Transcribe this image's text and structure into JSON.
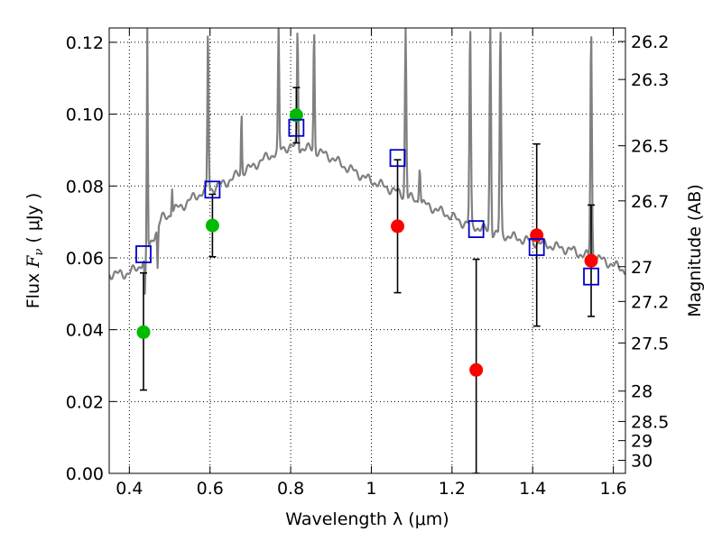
{
  "chart_data": {
    "type": "scatter",
    "xlabel": "Wavelength  λ (μm)",
    "ylabel": "Flux  F<sub>ν</sub>  ( μJy )",
    "ylabel_parts": {
      "prefix": "Flux  ",
      "symbol": "F",
      "subscript": "ν",
      "suffix": "  ( μJy )"
    },
    "y2label": "Magnitude (AB)",
    "xlim": [
      0.35,
      1.63
    ],
    "ylim": [
      0.0,
      0.124
    ],
    "grid": true,
    "x_ticks": [
      {
        "value": 0.4,
        "label": "0.4"
      },
      {
        "value": 0.6,
        "label": "0.6"
      },
      {
        "value": 0.8,
        "label": "0.8"
      },
      {
        "value": 1.0,
        "label": "1"
      },
      {
        "value": 1.2,
        "label": "1.2"
      },
      {
        "value": 1.4,
        "label": "1.4"
      },
      {
        "value": 1.6,
        "label": "1.6"
      }
    ],
    "y_ticks": [
      {
        "value": 0.0,
        "label": "0.00"
      },
      {
        "value": 0.02,
        "label": "0.02"
      },
      {
        "value": 0.04,
        "label": "0.04"
      },
      {
        "value": 0.06,
        "label": "0.06"
      },
      {
        "value": 0.08,
        "label": "0.08"
      },
      {
        "value": 0.1,
        "label": "0.10"
      },
      {
        "value": 0.12,
        "label": "0.12"
      }
    ],
    "y2_ticks": [
      {
        "mag": 26.2,
        "label": "26.2"
      },
      {
        "mag": 26.3,
        "label": "26.3"
      },
      {
        "mag": 26.5,
        "label": "26.5"
      },
      {
        "mag": 26.7,
        "label": "26.7"
      },
      {
        "mag": 27.0,
        "label": "27"
      },
      {
        "mag": 27.2,
        "label": "27.2"
      },
      {
        "mag": 27.5,
        "label": "27.5"
      },
      {
        "mag": 28.0,
        "label": "28"
      },
      {
        "mag": 28.5,
        "label": "28.5"
      },
      {
        "mag": 29.0,
        "label": "29"
      },
      {
        "mag": 30.0,
        "label": "30"
      }
    ],
    "colors": {
      "spectrum": "#808080",
      "green_points": "#00bb00",
      "red_points": "#ff0000",
      "model_squares": "#0000cc",
      "error_bars": "#000000"
    },
    "spectrum": {
      "continuum": [
        [
          0.35,
          0.0555
        ],
        [
          0.39,
          0.0555
        ],
        [
          0.42,
          0.057
        ],
        [
          0.44,
          0.06
        ],
        [
          0.46,
          0.066
        ],
        [
          0.48,
          0.071
        ],
        [
          0.5,
          0.072
        ],
        [
          0.52,
          0.074
        ],
        [
          0.54,
          0.075
        ],
        [
          0.56,
          0.077
        ],
        [
          0.58,
          0.078
        ],
        [
          0.6,
          0.079
        ],
        [
          0.62,
          0.08
        ],
        [
          0.64,
          0.081
        ],
        [
          0.66,
          0.0825
        ],
        [
          0.68,
          0.084
        ],
        [
          0.7,
          0.085
        ],
        [
          0.72,
          0.0865
        ],
        [
          0.74,
          0.088
        ],
        [
          0.76,
          0.089
        ],
        [
          0.78,
          0.0905
        ],
        [
          0.8,
          0.091
        ],
        [
          0.82,
          0.0905
        ],
        [
          0.84,
          0.0905
        ],
        [
          0.86,
          0.09
        ],
        [
          0.88,
          0.089
        ],
        [
          0.9,
          0.088
        ],
        [
          0.92,
          0.0865
        ],
        [
          0.94,
          0.085
        ],
        [
          0.96,
          0.084
        ],
        [
          0.98,
          0.0825
        ],
        [
          1.0,
          0.0815
        ],
        [
          1.02,
          0.0805
        ],
        [
          1.04,
          0.0795
        ],
        [
          1.06,
          0.0785
        ],
        [
          1.08,
          0.0775
        ],
        [
          1.1,
          0.0765
        ],
        [
          1.12,
          0.0755
        ],
        [
          1.14,
          0.0745
        ],
        [
          1.16,
          0.0735
        ],
        [
          1.18,
          0.0725
        ],
        [
          1.2,
          0.0715
        ],
        [
          1.22,
          0.07
        ],
        [
          1.24,
          0.0695
        ],
        [
          1.26,
          0.0685
        ],
        [
          1.28,
          0.068
        ],
        [
          1.3,
          0.067
        ],
        [
          1.32,
          0.0665
        ],
        [
          1.34,
          0.066
        ],
        [
          1.36,
          0.0655
        ],
        [
          1.38,
          0.065
        ],
        [
          1.4,
          0.0645
        ],
        [
          1.42,
          0.064
        ],
        [
          1.44,
          0.0635
        ],
        [
          1.46,
          0.063
        ],
        [
          1.48,
          0.0625
        ],
        [
          1.5,
          0.062
        ],
        [
          1.52,
          0.061
        ],
        [
          1.54,
          0.0605
        ],
        [
          1.56,
          0.06
        ],
        [
          1.58,
          0.059
        ],
        [
          1.6,
          0.058
        ],
        [
          1.63,
          0.0565
        ]
      ],
      "lines": [
        {
          "x": 0.4385,
          "peak": 0.049,
          "width": 0.004
        },
        {
          "x": 0.4445,
          "peak": 0.124,
          "width": 0.004
        },
        {
          "x": 0.47,
          "peak": 0.057,
          "width": 0.004
        },
        {
          "x": 0.506,
          "peak": 0.08,
          "width": 0.004
        },
        {
          "x": 0.595,
          "peak": 0.124,
          "width": 0.005
        },
        {
          "x": 0.678,
          "peak": 0.101,
          "width": 0.004
        },
        {
          "x": 0.77,
          "peak": 0.124,
          "width": 0.005
        },
        {
          "x": 0.817,
          "peak": 0.124,
          "width": 0.005
        },
        {
          "x": 0.858,
          "peak": 0.124,
          "width": 0.005
        },
        {
          "x": 1.085,
          "peak": 0.124,
          "width": 0.006
        },
        {
          "x": 1.12,
          "peak": 0.086,
          "width": 0.006
        },
        {
          "x": 1.245,
          "peak": 0.124,
          "width": 0.006
        },
        {
          "x": 1.295,
          "peak": 0.124,
          "width": 0.006
        },
        {
          "x": 1.32,
          "peak": 0.124,
          "width": 0.006
        },
        {
          "x": 1.545,
          "peak": 0.124,
          "width": 0.006
        }
      ]
    },
    "series": [
      {
        "marker": "circle",
        "color": "green_points",
        "points": [
          {
            "x": 0.435,
            "y": 0.0393,
            "yerr_low": 0.0232,
            "yerr_high": 0.0558
          },
          {
            "x": 0.606,
            "y": 0.069,
            "yerr_low": 0.0603,
            "yerr_high": 0.0777
          },
          {
            "x": 0.814,
            "y": 0.0997,
            "yerr_low": 0.092,
            "yerr_high": 0.1074
          }
        ]
      },
      {
        "marker": "circle",
        "color": "red_points",
        "points": [
          {
            "x": 1.065,
            "y": 0.0688,
            "yerr_low": 0.0503,
            "yerr_high": 0.0873
          },
          {
            "x": 1.26,
            "y": 0.0288,
            "yerr_low": 0.0,
            "yerr_high": 0.0596
          },
          {
            "x": 1.41,
            "y": 0.0663,
            "yerr_low": 0.041,
            "yerr_high": 0.0917
          },
          {
            "x": 1.545,
            "y": 0.0592,
            "yerr_low": 0.0437,
            "yerr_high": 0.0747
          }
        ]
      },
      {
        "marker": "square",
        "color": "model_squares",
        "points": [
          {
            "x": 0.435,
            "y": 0.061
          },
          {
            "x": 0.606,
            "y": 0.079
          },
          {
            "x": 0.814,
            "y": 0.0962
          },
          {
            "x": 1.065,
            "y": 0.0878
          },
          {
            "x": 1.26,
            "y": 0.068
          },
          {
            "x": 1.41,
            "y": 0.063
          },
          {
            "x": 1.545,
            "y": 0.0548
          }
        ]
      }
    ]
  }
}
